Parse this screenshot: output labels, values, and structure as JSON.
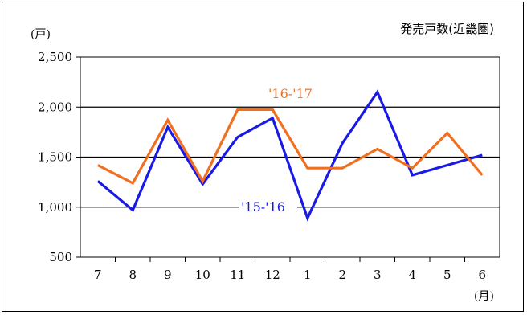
{
  "chart_data": {
    "type": "line",
    "title": "発売戸数(近畿圏)",
    "ylabel": "(戸)",
    "xlabel": "(月)",
    "categories": [
      "7",
      "8",
      "9",
      "10",
      "11",
      "12",
      "1",
      "2",
      "3",
      "4",
      "5",
      "6"
    ],
    "yticks": [
      "2,500",
      "2,000",
      "1,500",
      "1,000",
      "500"
    ],
    "ylim": [
      500,
      2500
    ],
    "grid": true,
    "series": [
      {
        "name": "'16-'17",
        "color": "#f07020",
        "values": [
          1420,
          1240,
          1870,
          1260,
          1975,
          1975,
          1390,
          1390,
          1580,
          1390,
          1740,
          1320
        ]
      },
      {
        "name": "'15-'16",
        "color": "#1a1ae6",
        "values": [
          1260,
          970,
          1800,
          1230,
          1700,
          1890,
          890,
          1640,
          2150,
          1320,
          1420,
          1520
        ]
      }
    ]
  }
}
